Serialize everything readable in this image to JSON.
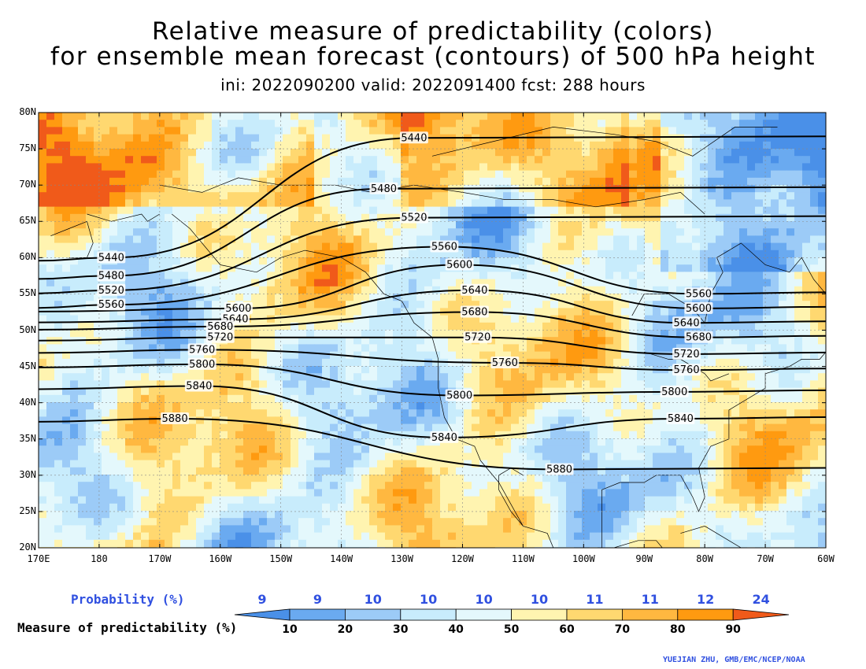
{
  "title": {
    "line1": "Relative measure of predictability (colors)",
    "line2": "for ensemble mean forecast (contours) of 500 hPa height",
    "line3": "ini: 2022090200 valid: 2022091400 fcst: 288 hours"
  },
  "map": {
    "lat_labels": [
      "80N",
      "75N",
      "70N",
      "65N",
      "60N",
      "55N",
      "50N",
      "45N",
      "40N",
      "35N",
      "30N",
      "25N",
      "20N"
    ],
    "lon_labels": [
      "170E",
      "180",
      "170W",
      "160W",
      "150W",
      "140W",
      "130W",
      "120W",
      "110W",
      "100W",
      "90W",
      "80W",
      "70W",
      "60W"
    ],
    "contour_labels": [
      {
        "value": "5440",
        "lat": 60.0,
        "lon": -178.0
      },
      {
        "value": "5440",
        "lat": 76.5,
        "lon": -128.0
      },
      {
        "value": "5480",
        "lat": 57.5,
        "lon": -178.0
      },
      {
        "value": "5480",
        "lat": 69.5,
        "lon": -133.0
      },
      {
        "value": "5520",
        "lat": 55.5,
        "lon": -178.0
      },
      {
        "value": "5520",
        "lat": 65.5,
        "lon": -128.0
      },
      {
        "value": "5560",
        "lat": 53.5,
        "lon": -178.0
      },
      {
        "value": "5560",
        "lat": 61.5,
        "lon": -123.0
      },
      {
        "value": "5560",
        "lat": 55.0,
        "lon": -81.0
      },
      {
        "value": "5600",
        "lat": 53.0,
        "lon": -157.0
      },
      {
        "value": "5600",
        "lat": 59.0,
        "lon": -120.5
      },
      {
        "value": "5600",
        "lat": 53.0,
        "lon": -81.0
      },
      {
        "value": "5640",
        "lat": 51.5,
        "lon": -157.5
      },
      {
        "value": "5640",
        "lat": 55.5,
        "lon": -118.0
      },
      {
        "value": "5640",
        "lat": 51.0,
        "lon": -83.0
      },
      {
        "value": "5680",
        "lat": 50.5,
        "lon": -160.0
      },
      {
        "value": "5680",
        "lat": 52.5,
        "lon": -118.0
      },
      {
        "value": "5680",
        "lat": 49.0,
        "lon": -81.0
      },
      {
        "value": "5720",
        "lat": 49.0,
        "lon": -160.0
      },
      {
        "value": "5720",
        "lat": 49.0,
        "lon": -117.5
      },
      {
        "value": "5720",
        "lat": 46.7,
        "lon": -83.0
      },
      {
        "value": "5760",
        "lat": 47.3,
        "lon": -163.0
      },
      {
        "value": "5760",
        "lat": 45.5,
        "lon": -113.0
      },
      {
        "value": "5760",
        "lat": 44.5,
        "lon": -83.0
      },
      {
        "value": "5800",
        "lat": 45.3,
        "lon": -163.0
      },
      {
        "value": "5800",
        "lat": 41.0,
        "lon": -120.5
      },
      {
        "value": "5800",
        "lat": 41.5,
        "lon": -85.0
      },
      {
        "value": "5840",
        "lat": 42.3,
        "lon": -163.5
      },
      {
        "value": "5840",
        "lat": 35.2,
        "lon": -123.0
      },
      {
        "value": "5840",
        "lat": 37.8,
        "lon": -84.0
      },
      {
        "value": "5880",
        "lat": 37.8,
        "lon": -167.5
      },
      {
        "value": "5880",
        "lat": 30.8,
        "lon": -104.0
      }
    ]
  },
  "legend": {
    "probability_label": "Probability (%)",
    "probabilities": [
      "9",
      "9",
      "10",
      "10",
      "10",
      "10",
      "11",
      "11",
      "12",
      "24"
    ],
    "measure_label": "Measure of predictability (%)",
    "thresholds": [
      "10",
      "20",
      "30",
      "40",
      "50",
      "60",
      "70",
      "80",
      "90"
    ],
    "colors": [
      "#4a90e8",
      "#6aaaf0",
      "#9ccbf7",
      "#c8ecfc",
      "#e4f8fc",
      "#fff4b0",
      "#ffd870",
      "#ffb840",
      "#ff9a10",
      "#f05a1a"
    ]
  },
  "credit": "YUEJIAN ZHU, GMB/EMC/NCEP/NOAA"
}
